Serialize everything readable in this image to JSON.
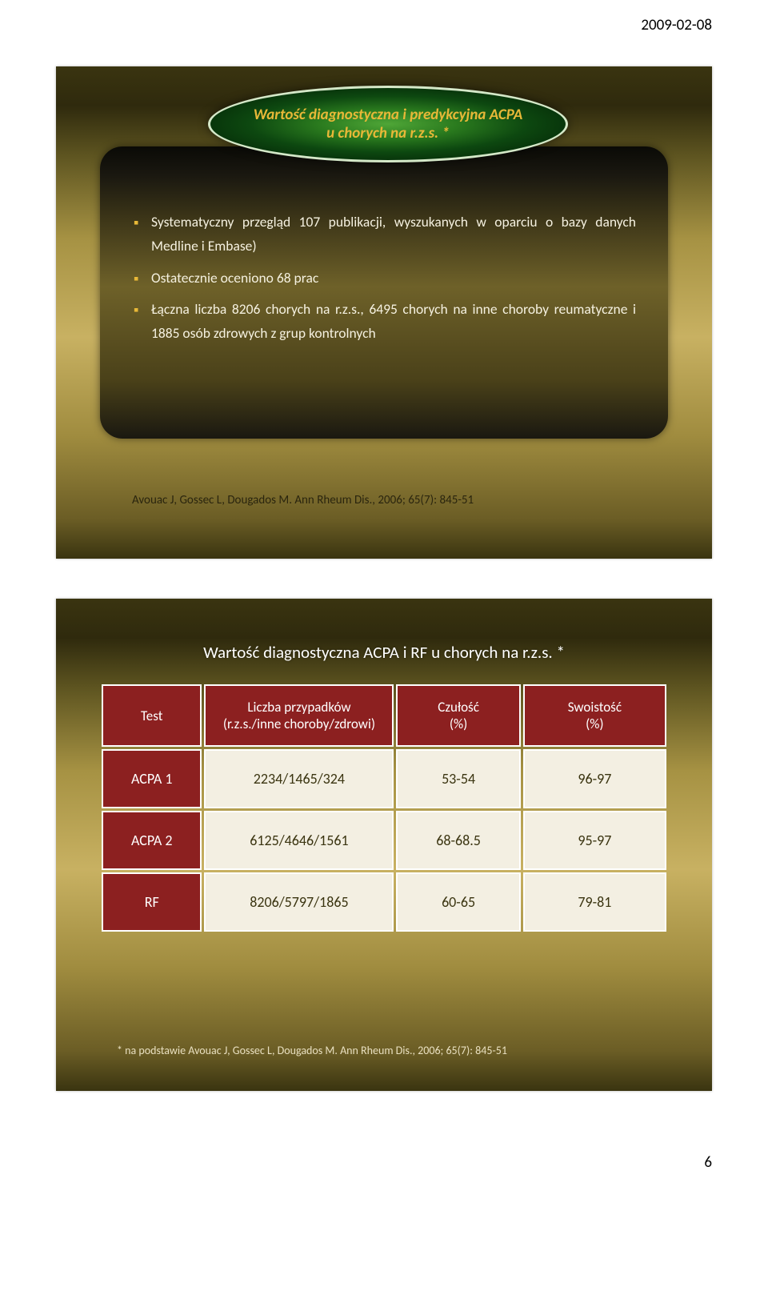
{
  "header": {
    "date": "2009-02-08"
  },
  "slide1": {
    "title_line1": "Wartość diagnostyczna i predykcyjna ACPA",
    "title_line2": "u chorych  na r.z.s. *",
    "bullets": [
      "Systematyczny przegląd 107 publikacji, wyszukanych w oparciu o bazy danych Medline i Embase)",
      "Ostatecznie oceniono 68 prac",
      "Łączna liczba 8206 chorych na r.z.s., 6495 chorych na inne choroby reumatyczne i 1885 osób zdrowych z grup kontrolnych"
    ],
    "citation": "Avouac J, Gossec L, Dougados M. Ann Rheum Dis., 2006; 65(7): 845-51"
  },
  "slide2": {
    "title": "Wartość diagnostyczna ACPA i RF u chorych na r.z.s. *",
    "columns": [
      "Test",
      "Liczba przypadków (r.z.s./inne choroby/zdrowi)",
      "Czułość (%)",
      "Swoistość (%)"
    ],
    "rows": [
      [
        "ACPA 1",
        "2234/1465/324",
        "53-54",
        "96-97"
      ],
      [
        "ACPA 2",
        "6125/4646/1561",
        "68-68.5",
        "95-97"
      ],
      [
        "RF",
        "8206/5797/1865",
        "60-65",
        "79-81"
      ]
    ],
    "footnote": "* na podstawie Avouac J, Gossec L, Dougados M. Ann Rheum Dis., 2006; 65(7): 845-51",
    "header_bg": "#8c2020",
    "cell_bg": "#f3efe2"
  },
  "footer": {
    "page_number": "6"
  }
}
